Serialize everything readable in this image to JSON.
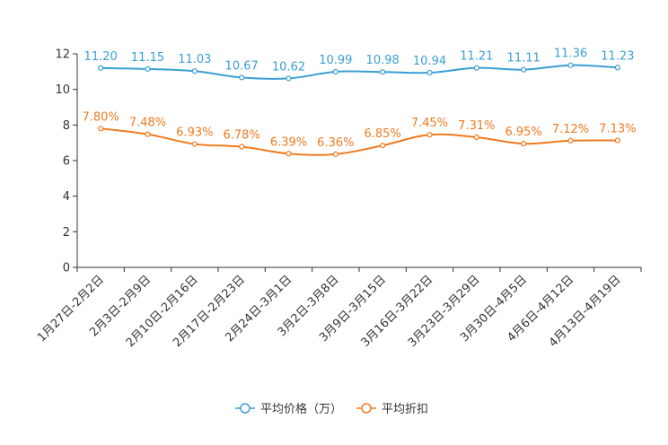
{
  "chart_data": {
    "type": "line",
    "title": "",
    "xlabel": "",
    "ylabel": "",
    "ylim": [
      0,
      12
    ],
    "yticks": [
      "0",
      "2",
      "4",
      "6",
      "8",
      "10",
      "12"
    ],
    "grid": false,
    "legend_position": "bottom",
    "categories": [
      "1月27日-2月2日",
      "2月3日-2月9日",
      "2月10日-2月16日",
      "2月17日-2月23日",
      "2月24日-3月1日",
      "3月2日-3月8日",
      "3月9日-3月15日",
      "3月16日-3月22日",
      "3月23日-3月29日",
      "3月30日-4月5日",
      "4月6日-4月12日",
      "4月13日-4月19日"
    ],
    "series": [
      {
        "name": "平均价格（万）",
        "color": "#3a9fd4",
        "values": [
          11.2,
          11.15,
          11.03,
          10.67,
          10.62,
          10.99,
          10.98,
          10.94,
          11.21,
          11.11,
          11.36,
          11.23
        ],
        "labels": [
          "11.20",
          "11.15",
          "11.03",
          "10.67",
          "10.62",
          "10.99",
          "10.98",
          "10.94",
          "11.21",
          "11.11",
          "11.36",
          "11.23"
        ]
      },
      {
        "name": "平均折扣",
        "color": "#f07a1f",
        "values": [
          7.8,
          7.48,
          6.93,
          6.78,
          6.39,
          6.36,
          6.85,
          7.45,
          7.31,
          6.95,
          7.12,
          7.13
        ],
        "labels": [
          "7.80%",
          "7.48%",
          "6.93%",
          "6.78%",
          "6.39%",
          "6.36%",
          "6.85%",
          "7.45%",
          "7.31%",
          "6.95%",
          "7.12%",
          "7.13%"
        ]
      }
    ]
  }
}
